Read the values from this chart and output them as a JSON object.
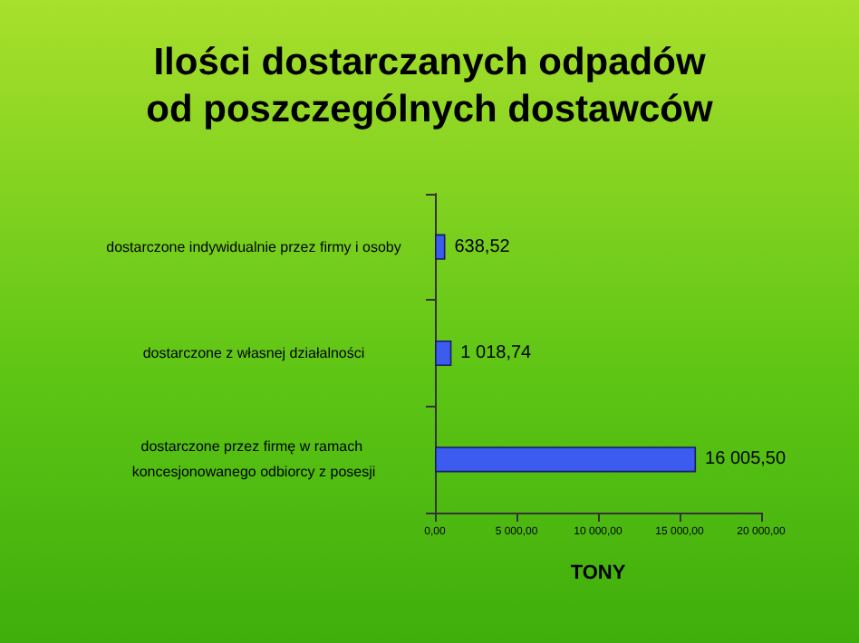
{
  "chart_data": {
    "type": "bar",
    "orientation": "horizontal",
    "title": "Ilości dostarczanych odpadów\nod poszczególnych dostawców",
    "xlabel": "TONY",
    "categories": [
      "dostarczone indywidualnie przez firmy i osoby",
      "dostarczone z własnej działalności",
      "dostarczone przez firmę w ramach koncesjonowanego odbiorcy z posesji"
    ],
    "values": [
      638.52,
      1018.74,
      16005.5
    ],
    "value_labels": [
      "638,52",
      "1 018,74",
      "16 005,50"
    ],
    "color": "#3c5cf0",
    "xlim": [
      0,
      20000
    ],
    "xticks": [
      {
        "value": 0,
        "label": "0,00"
      },
      {
        "value": 5000,
        "label": "5 000,00"
      },
      {
        "value": 10000,
        "label": "10 000,00"
      },
      {
        "value": 15000,
        "label": "15 000,00"
      },
      {
        "value": 20000,
        "label": "20 000,00"
      }
    ]
  }
}
